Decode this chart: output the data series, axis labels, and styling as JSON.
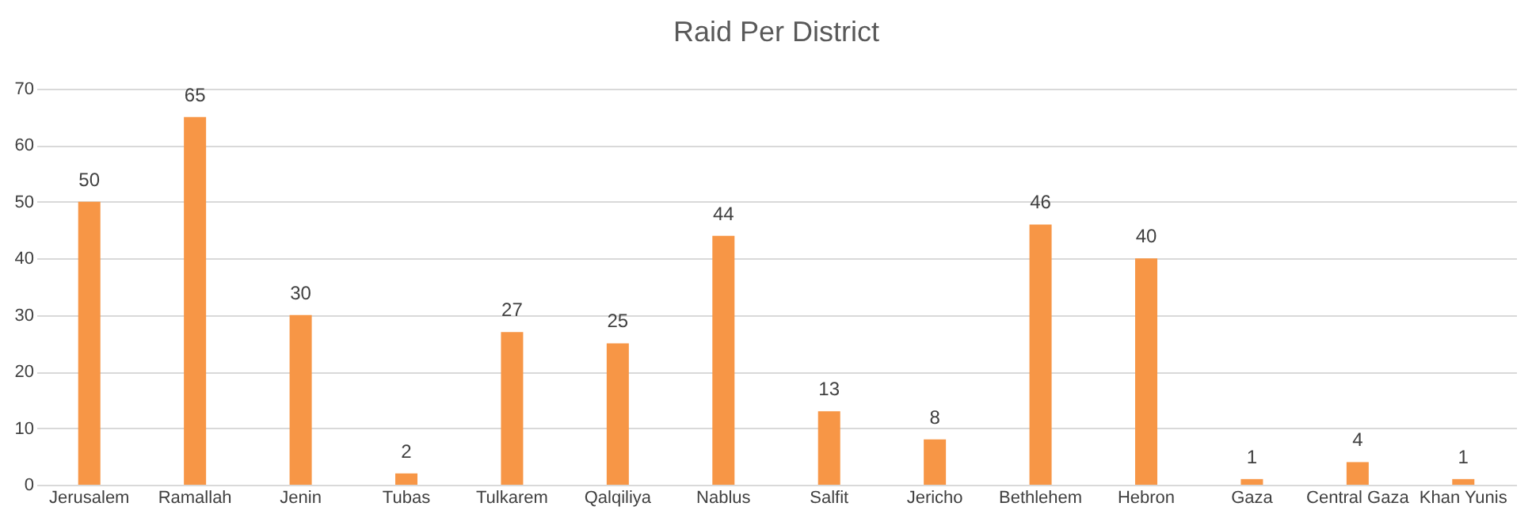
{
  "chart_data": {
    "type": "bar",
    "title": "Raid Per District",
    "categories": [
      "Jerusalem",
      "Ramallah",
      "Jenin",
      "Tubas",
      "Tulkarem",
      "Qalqiliya",
      "Nablus",
      "Salfit",
      "Jericho",
      "Bethlehem",
      "Hebron",
      "Gaza",
      "Central Gaza",
      "Khan Yunis"
    ],
    "values": [
      50,
      65,
      30,
      2,
      27,
      25,
      44,
      13,
      8,
      46,
      40,
      1,
      4,
      1
    ],
    "color": "#f79646",
    "ylim": [
      0,
      70
    ],
    "yticks": [
      0,
      10,
      20,
      30,
      40,
      50,
      60,
      70
    ],
    "grid": "y",
    "data_labels": true
  }
}
